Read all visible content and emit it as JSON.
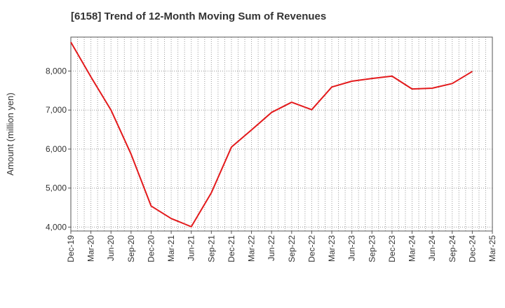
{
  "title": "[6158]  Trend of 12-Month Moving Sum of Revenues",
  "chart_data": {
    "type": "line",
    "title": "[6158]  Trend of 12-Month Moving Sum of Revenues",
    "xlabel": "",
    "ylabel": "Amount (million yen)",
    "categories": [
      "Dec-19",
      "Mar-20",
      "Jun-20",
      "Sep-20",
      "Dec-20",
      "Mar-21",
      "Jun-21",
      "Sep-21",
      "Dec-21",
      "Mar-22",
      "Jun-22",
      "Sep-22",
      "Dec-22",
      "Mar-23",
      "Jun-23",
      "Sep-23",
      "Dec-23",
      "Mar-24",
      "Jun-24",
      "Sep-24",
      "Dec-24",
      "Mar-25"
    ],
    "yticks": [
      4000,
      5000,
      6000,
      7000,
      8000
    ],
    "ytick_labels": [
      "4,000",
      "5,000",
      "6,000",
      "7,000",
      "8,000"
    ],
    "ylim": [
      3900,
      8870
    ],
    "grid": true,
    "series": [
      {
        "color": "#e31a1c",
        "values": [
          8740,
          7850,
          7000,
          5870,
          4540,
          4220,
          4010,
          4880,
          6050,
          6490,
          6940,
          7200,
          7010,
          7590,
          7740,
          7810,
          7870,
          7540,
          7560,
          7680,
          7990,
          null
        ]
      }
    ]
  }
}
